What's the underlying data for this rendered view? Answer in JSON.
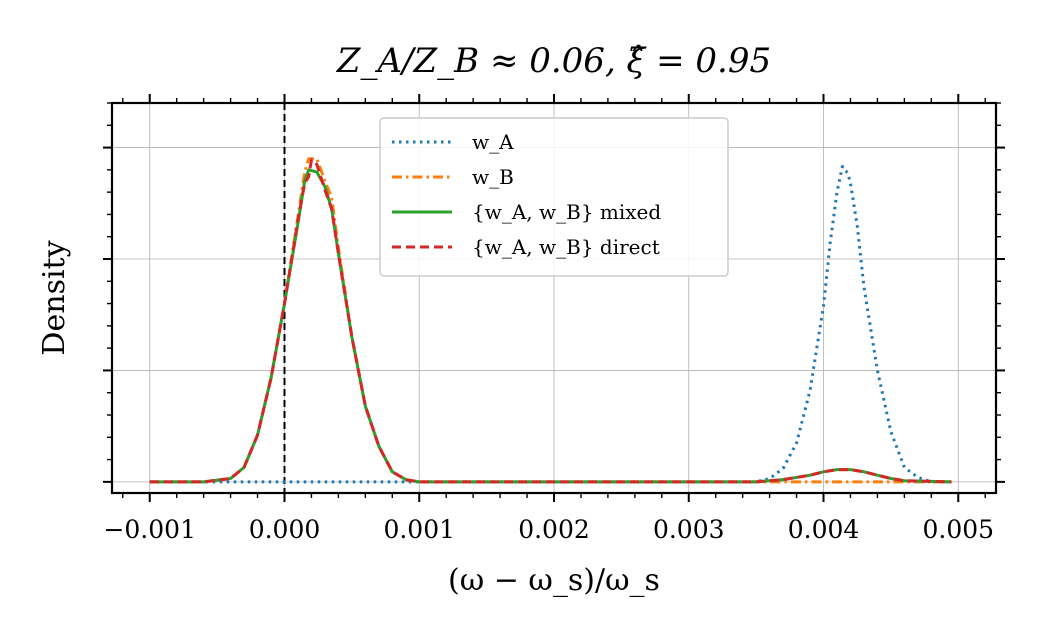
{
  "chart_data": {
    "type": "line",
    "title": "Z_A/Z_B ≈ 0.06, ξ̂ = 0.95",
    "xlabel": "(ω − ω_s)/ω_s",
    "ylabel": "Density",
    "xlim": [
      -0.00128,
      0.00528
    ],
    "ylim": [
      -0.01,
      0.34
    ],
    "x_ticks": [
      -0.001,
      0.0,
      0.001,
      0.002,
      0.003,
      0.004,
      0.005
    ],
    "x_tick_labels": [
      "−0.001",
      "0.000",
      "0.001",
      "0.002",
      "0.003",
      "0.004",
      "0.005"
    ],
    "grid": true,
    "legend_position": "top-center",
    "reference_line_x": 0.0,
    "series": [
      {
        "name": "w_A",
        "color": "#1f77b4",
        "dash": "dotted",
        "points": [
          [
            -0.001,
            0.0
          ],
          [
            -0.0005,
            0.0
          ],
          [
            0.0,
            0.0
          ],
          [
            0.001,
            0.0
          ],
          [
            0.002,
            0.0
          ],
          [
            0.003,
            0.0
          ],
          [
            0.0035,
            0.0
          ],
          [
            0.0036,
            0.003
          ],
          [
            0.0037,
            0.012
          ],
          [
            0.0038,
            0.035
          ],
          [
            0.0039,
            0.082
          ],
          [
            0.004,
            0.158
          ],
          [
            0.00405,
            0.215
          ],
          [
            0.0041,
            0.26
          ],
          [
            0.00414,
            0.283
          ],
          [
            0.00418,
            0.277
          ],
          [
            0.0042,
            0.268
          ],
          [
            0.00425,
            0.23
          ],
          [
            0.0043,
            0.175
          ],
          [
            0.0044,
            0.1
          ],
          [
            0.0045,
            0.045
          ],
          [
            0.0046,
            0.013
          ],
          [
            0.0047,
            0.004
          ],
          [
            0.0048,
            0.0
          ],
          [
            0.00495,
            0.0
          ]
        ]
      },
      {
        "name": "w_B",
        "color": "#ff7f0e",
        "dash": "dashdot",
        "points": [
          [
            -0.001,
            0.0
          ],
          [
            -0.0006,
            0.0
          ],
          [
            -0.0004,
            0.003
          ],
          [
            -0.0003,
            0.013
          ],
          [
            -0.0002,
            0.042
          ],
          [
            -0.0001,
            0.093
          ],
          [
            0.0,
            0.16
          ],
          [
            0.0001,
            0.238
          ],
          [
            0.00015,
            0.278
          ],
          [
            0.00018,
            0.29
          ],
          [
            0.00024,
            0.29
          ],
          [
            0.0003,
            0.27
          ],
          [
            0.00035,
            0.255
          ],
          [
            0.0004,
            0.21
          ],
          [
            0.0005,
            0.13
          ],
          [
            0.0006,
            0.068
          ],
          [
            0.0007,
            0.032
          ],
          [
            0.0008,
            0.009
          ],
          [
            0.0009,
            0.002
          ],
          [
            0.001,
            0.0
          ],
          [
            0.002,
            0.0
          ],
          [
            0.003,
            0.0
          ],
          [
            0.004,
            0.0
          ],
          [
            0.00495,
            0.0
          ]
        ]
      },
      {
        "name": "{w_A, w_B} mixed",
        "color": "#2ca02c",
        "dash": "solid",
        "points": [
          [
            -0.001,
            0.0
          ],
          [
            -0.0006,
            0.0
          ],
          [
            -0.0004,
            0.003
          ],
          [
            -0.0003,
            0.013
          ],
          [
            -0.0002,
            0.042
          ],
          [
            -0.0001,
            0.093
          ],
          [
            0.0,
            0.16
          ],
          [
            0.0001,
            0.232
          ],
          [
            0.00015,
            0.27
          ],
          [
            0.00018,
            0.28
          ],
          [
            0.00024,
            0.278
          ],
          [
            0.0003,
            0.265
          ],
          [
            0.00035,
            0.245
          ],
          [
            0.0004,
            0.205
          ],
          [
            0.0005,
            0.13
          ],
          [
            0.0006,
            0.068
          ],
          [
            0.0007,
            0.032
          ],
          [
            0.0008,
            0.009
          ],
          [
            0.0009,
            0.002
          ],
          [
            0.001,
            0.0
          ],
          [
            0.002,
            0.0
          ],
          [
            0.003,
            0.0
          ],
          [
            0.0035,
            0.0
          ],
          [
            0.0037,
            0.002
          ],
          [
            0.0039,
            0.006
          ],
          [
            0.004,
            0.009
          ],
          [
            0.0041,
            0.011
          ],
          [
            0.0042,
            0.011
          ],
          [
            0.0043,
            0.009
          ],
          [
            0.0044,
            0.006
          ],
          [
            0.0045,
            0.003
          ],
          [
            0.0046,
            0.001
          ],
          [
            0.00495,
            0.0
          ]
        ]
      },
      {
        "name": "{w_A, w_B} direct",
        "color": "#d62728",
        "dash": "dashed",
        "points": [
          [
            -0.001,
            0.0
          ],
          [
            -0.0006,
            0.0
          ],
          [
            -0.0004,
            0.003
          ],
          [
            -0.0003,
            0.013
          ],
          [
            -0.0002,
            0.042
          ],
          [
            -0.0001,
            0.093
          ],
          [
            0.0,
            0.16
          ],
          [
            0.0001,
            0.235
          ],
          [
            0.00015,
            0.268
          ],
          [
            0.00018,
            0.274
          ],
          [
            0.0002,
            0.289
          ],
          [
            0.00024,
            0.285
          ],
          [
            0.0003,
            0.262
          ],
          [
            0.00035,
            0.245
          ],
          [
            0.0004,
            0.205
          ],
          [
            0.0005,
            0.13
          ],
          [
            0.0006,
            0.068
          ],
          [
            0.0007,
            0.032
          ],
          [
            0.0008,
            0.009
          ],
          [
            0.0009,
            0.002
          ],
          [
            0.001,
            0.0
          ],
          [
            0.002,
            0.0
          ],
          [
            0.003,
            0.0
          ],
          [
            0.0035,
            0.0
          ],
          [
            0.0037,
            0.002
          ],
          [
            0.0039,
            0.006
          ],
          [
            0.004,
            0.009
          ],
          [
            0.0041,
            0.011
          ],
          [
            0.0042,
            0.011
          ],
          [
            0.0043,
            0.009
          ],
          [
            0.0044,
            0.006
          ],
          [
            0.0045,
            0.003
          ],
          [
            0.0046,
            0.001
          ],
          [
            0.00495,
            0.0
          ]
        ]
      }
    ],
    "legend": [
      {
        "label_math": "w",
        "label_sub": "A",
        "label_rest": ""
      },
      {
        "label_math": "w",
        "label_sub": "B",
        "label_rest": ""
      },
      {
        "label_math": "{w_A, w_B}",
        "label_sub": "",
        "label_rest": "mixed"
      },
      {
        "label_math": "{w_A, w_B}",
        "label_sub": "",
        "label_rest": "direct"
      }
    ]
  },
  "text": {
    "title": "Z_A/Z_B ≈ 0.06, ξ̂ = 0.95",
    "xlabel": "(ω − ω_s)/ω_s",
    "ylabel": "Density",
    "legend_labels": [
      "w_A",
      "w_B",
      "{w_A, w_B} mixed",
      "{w_A, w_B} direct"
    ]
  }
}
